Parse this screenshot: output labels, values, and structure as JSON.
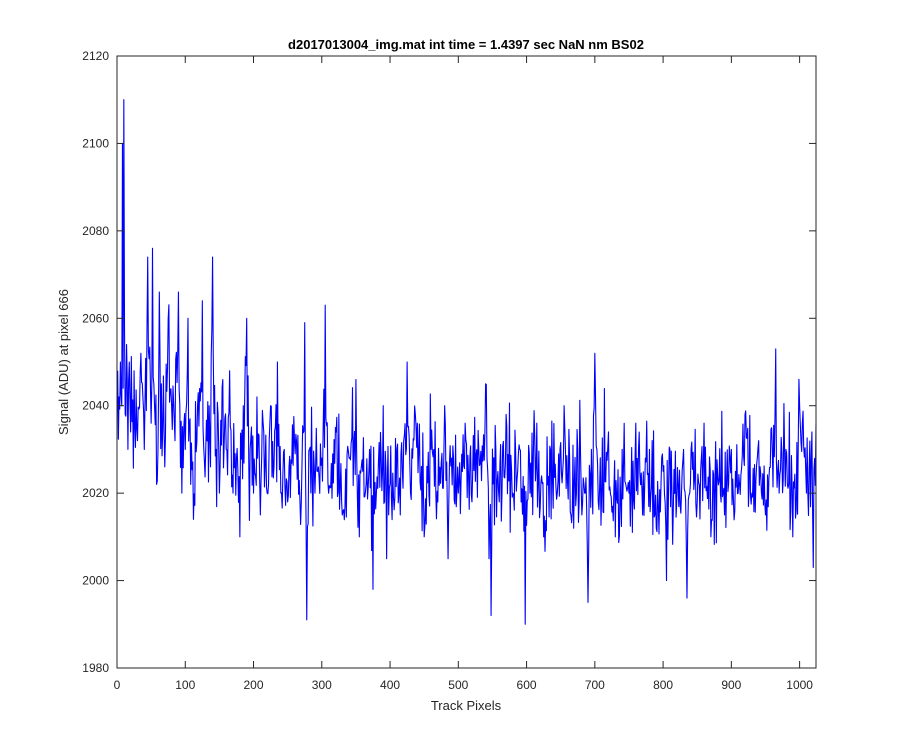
{
  "chart_data": {
    "type": "line",
    "title": "d2017013004_img.mat int time = 1.4397 sec  NaN nm BS02",
    "xlabel": "Track Pixels",
    "ylabel": "Signal (ADU) at pixel 666",
    "xlim": [
      0,
      1024
    ],
    "ylim": [
      1980,
      2120
    ],
    "xticks": [
      0,
      100,
      200,
      300,
      400,
      500,
      600,
      700,
      800,
      900,
      1000
    ],
    "yticks": [
      1980,
      2000,
      2020,
      2040,
      2060,
      2080,
      2100,
      2120
    ],
    "grid": false,
    "box": true,
    "line_color": "#0000ff",
    "x_start": 1,
    "x_step": 1,
    "count": 1024,
    "key_points": [
      [
        1,
        2048
      ],
      [
        3,
        2042
      ],
      [
        5,
        2050
      ],
      [
        7,
        2040
      ],
      [
        8,
        2100
      ],
      [
        9,
        2044
      ],
      [
        10,
        2110
      ],
      [
        12,
        2038
      ],
      [
        14,
        2054
      ],
      [
        16,
        2030
      ],
      [
        18,
        2050
      ],
      [
        20,
        2034
      ],
      [
        25,
        2048
      ],
      [
        30,
        2032
      ],
      [
        35,
        2052
      ],
      [
        40,
        2030
      ],
      [
        45,
        2074
      ],
      [
        50,
        2036
      ],
      [
        52,
        2076
      ],
      [
        55,
        2040
      ],
      [
        58,
        2022
      ],
      [
        62,
        2066
      ],
      [
        65,
        2045
      ],
      [
        70,
        2026
      ],
      [
        75,
        2060
      ],
      [
        80,
        2040
      ],
      [
        85,
        2032
      ],
      [
        90,
        2066
      ],
      [
        95,
        2020
      ],
      [
        100,
        2030
      ],
      [
        104,
        2060
      ],
      [
        108,
        2022
      ],
      [
        112,
        2014
      ],
      [
        118,
        2040
      ],
      [
        125,
        2064
      ],
      [
        130,
        2030
      ],
      [
        135,
        2040
      ],
      [
        140,
        2074
      ],
      [
        145,
        2030
      ],
      [
        150,
        2020
      ],
      [
        155,
        2046
      ],
      [
        160,
        2030
      ],
      [
        165,
        2048
      ],
      [
        170,
        2020
      ],
      [
        175,
        2028
      ],
      [
        180,
        2010
      ],
      [
        185,
        2040
      ],
      [
        190,
        2060
      ],
      [
        195,
        2030
      ],
      [
        200,
        2020
      ],
      [
        205,
        2042
      ],
      [
        210,
        2015
      ],
      [
        215,
        2034
      ],
      [
        220,
        2020
      ],
      [
        225,
        2040
      ],
      [
        230,
        2026
      ],
      [
        235,
        2050
      ],
      [
        240,
        2020
      ],
      [
        245,
        2030
      ],
      [
        250,
        2018
      ],
      [
        260,
        2032
      ],
      [
        270,
        2018
      ],
      [
        275,
        2059
      ],
      [
        278,
        1991
      ],
      [
        282,
        2030
      ],
      [
        290,
        2020
      ],
      [
        300,
        2028
      ],
      [
        305,
        2063
      ],
      [
        310,
        2020
      ],
      [
        320,
        2035
      ],
      [
        330,
        2015
      ],
      [
        340,
        2028
      ],
      [
        350,
        2046
      ],
      [
        355,
        2010
      ],
      [
        360,
        2025
      ],
      [
        370,
        2030
      ],
      [
        375,
        1998
      ],
      [
        380,
        2020
      ],
      [
        390,
        2040
      ],
      [
        395,
        2005
      ],
      [
        400,
        2022
      ],
      [
        410,
        2030
      ],
      [
        415,
        2015
      ],
      [
        420,
        2032
      ],
      [
        425,
        2050
      ],
      [
        430,
        2020
      ],
      [
        440,
        2036
      ],
      [
        450,
        2010
      ],
      [
        460,
        2030
      ],
      [
        470,
        2018
      ],
      [
        480,
        2040
      ],
      [
        485,
        2005
      ],
      [
        490,
        2028
      ],
      [
        500,
        2020
      ],
      [
        510,
        2036
      ],
      [
        520,
        2018
      ],
      [
        530,
        2030
      ],
      [
        540,
        2045
      ],
      [
        545,
        2005
      ],
      [
        548,
        1992
      ],
      [
        555,
        2030
      ],
      [
        560,
        2018
      ],
      [
        570,
        2038
      ],
      [
        580,
        2020
      ],
      [
        590,
        2030
      ],
      [
        598,
        1990
      ],
      [
        605,
        2020
      ],
      [
        615,
        2036
      ],
      [
        625,
        2010
      ],
      [
        635,
        2030
      ],
      [
        645,
        2020
      ],
      [
        655,
        2040
      ],
      [
        665,
        2015
      ],
      [
        675,
        2030
      ],
      [
        685,
        2020
      ],
      [
        690,
        1995
      ],
      [
        695,
        2030
      ],
      [
        700,
        2052
      ],
      [
        710,
        2020
      ],
      [
        720,
        2034
      ],
      [
        730,
        2010
      ],
      [
        740,
        2030
      ],
      [
        750,
        2020
      ],
      [
        760,
        2036
      ],
      [
        770,
        2015
      ],
      [
        780,
        2030
      ],
      [
        790,
        2012
      ],
      [
        800,
        2025
      ],
      [
        805,
        2000
      ],
      [
        810,
        2030
      ],
      [
        820,
        2018
      ],
      [
        830,
        2030
      ],
      [
        835,
        1996
      ],
      [
        840,
        2022
      ],
      [
        850,
        2018
      ],
      [
        860,
        2036
      ],
      [
        870,
        2010
      ],
      [
        880,
        2024
      ],
      [
        890,
        2015
      ],
      [
        900,
        2030
      ],
      [
        910,
        2020
      ],
      [
        920,
        2038
      ],
      [
        930,
        2020
      ],
      [
        940,
        2032
      ],
      [
        950,
        2015
      ],
      [
        960,
        2030
      ],
      [
        965,
        2053
      ],
      [
        970,
        2020
      ],
      [
        980,
        2030
      ],
      [
        990,
        2010
      ],
      [
        1000,
        2040
      ],
      [
        1010,
        2020
      ],
      [
        1018,
        2034
      ],
      [
        1020,
        2003
      ],
      [
        1024,
        2036
      ]
    ]
  }
}
